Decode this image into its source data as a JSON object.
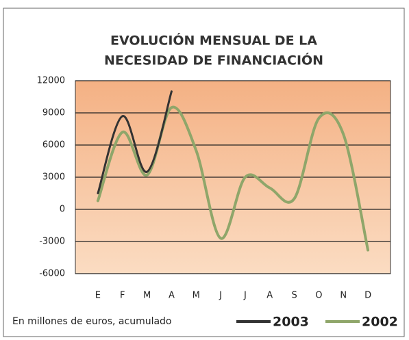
{
  "chart_data": {
    "type": "line",
    "title": [
      "EVOLUCIÓN MENSUAL DE LA",
      "NECESIDAD DE FINANCIACIÓN"
    ],
    "note": "En millones de euros, acumulado",
    "categories": [
      "E",
      "F",
      "M",
      "A",
      "M",
      "J",
      "J",
      "A",
      "S",
      "O",
      "N",
      "D"
    ],
    "series": [
      {
        "name": "2003",
        "color": "#333333",
        "values": [
          1500,
          8700,
          3500,
          11000,
          null,
          null,
          null,
          null,
          null,
          null,
          null,
          null
        ]
      },
      {
        "name": "2002",
        "color": "#8fa66a",
        "values": [
          800,
          7200,
          3200,
          9500,
          5500,
          -2700,
          3000,
          2000,
          1000,
          8500,
          7000,
          -3800
        ]
      }
    ],
    "ylim": [
      -6000,
      12000
    ],
    "yticks": [
      -6000,
      -3000,
      0,
      3000,
      6000,
      9000,
      12000
    ],
    "grid": true
  }
}
